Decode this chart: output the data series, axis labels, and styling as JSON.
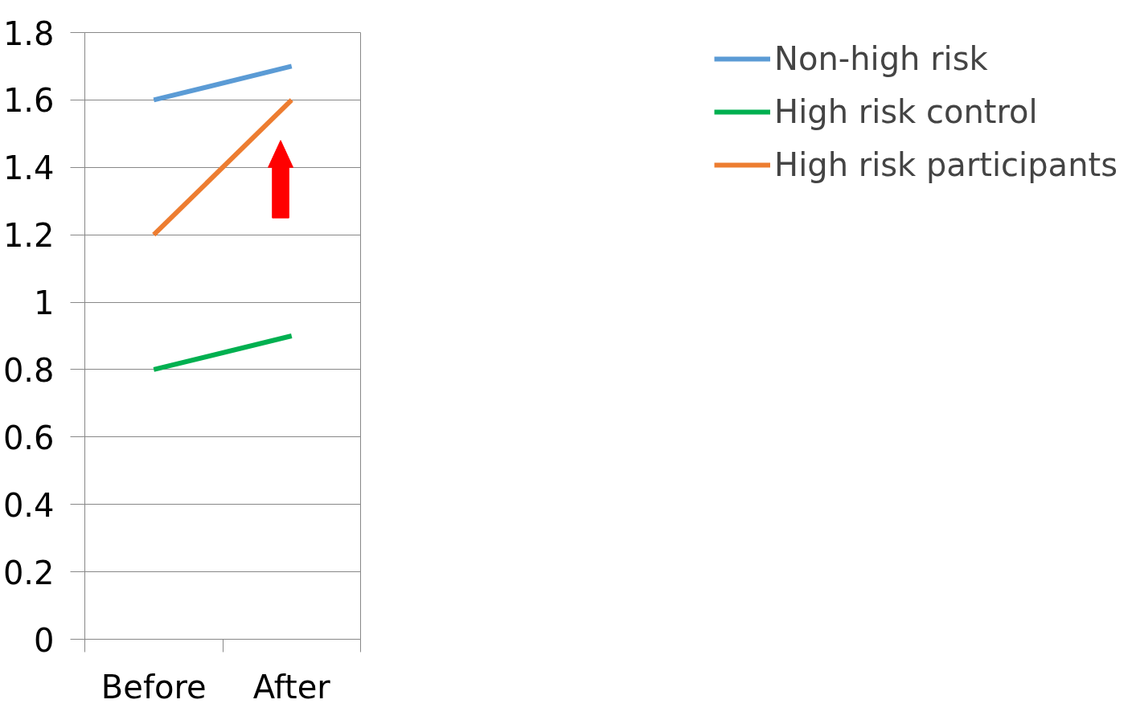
{
  "chart_data": {
    "type": "line",
    "categories": [
      "Before",
      "After"
    ],
    "series": [
      {
        "name": "Non-high risk",
        "color": "#5b9bd5",
        "values": [
          1.6,
          1.7
        ]
      },
      {
        "name": "High risk control",
        "color": "#00b050",
        "values": [
          0.8,
          0.9
        ]
      },
      {
        "name": "High risk participants",
        "color": "#ed7d31",
        "values": [
          1.2,
          1.6
        ]
      }
    ],
    "ylim": [
      0,
      1.8
    ],
    "yticks": [
      0,
      0.2,
      0.4,
      0.6,
      0.8,
      1,
      1.2,
      1.4,
      1.6,
      1.8
    ],
    "grid": "y",
    "legend": "right",
    "marker": "none",
    "line_style": "solid"
  }
}
